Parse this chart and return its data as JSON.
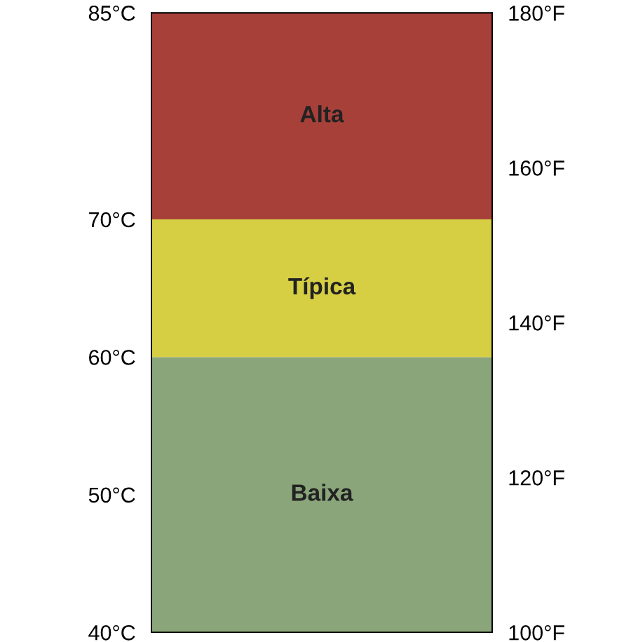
{
  "chart_data": {
    "type": "bar",
    "categories": [
      null
    ],
    "values": [
      null
    ],
    "grid": false,
    "legend": false,
    "bands": [
      {
        "axis": "y",
        "from": 40,
        "to": 60,
        "label": "Baixa",
        "color": "#8aa57a"
      },
      {
        "axis": "y",
        "from": 60,
        "to": 70,
        "label": "Típica",
        "color": "#d6cf44"
      },
      {
        "axis": "y",
        "from": 70,
        "to": 85,
        "label": "Alta",
        "color": "#a8403a"
      }
    ],
    "ylim": [
      40,
      85
    ],
    "yticks": [
      {
        "value": 40,
        "label": "40°C"
      },
      {
        "value": 50,
        "label": "50°C"
      },
      {
        "value": 60,
        "label": "60°C"
      },
      {
        "value": 70,
        "label": "70°C"
      },
      {
        "value": 85,
        "label": "85°C"
      }
    ],
    "y2lim": [
      100,
      180
    ],
    "y2ticks": [
      {
        "value": 100,
        "label": "100°F"
      },
      {
        "value": 120,
        "label": "120°F"
      },
      {
        "value": 140,
        "label": "140°F"
      },
      {
        "value": 160,
        "label": "160°F"
      },
      {
        "value": 180,
        "label": "180°F"
      }
    ]
  }
}
